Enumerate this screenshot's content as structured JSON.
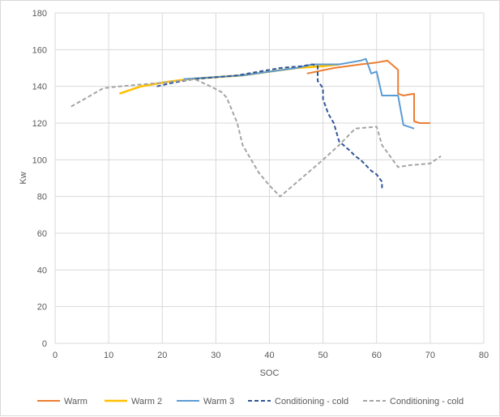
{
  "chart_data": {
    "type": "line",
    "title": "",
    "xlabel": "SOC",
    "ylabel": "Kw",
    "xlim": [
      0,
      80
    ],
    "ylim": [
      0,
      180
    ],
    "x_ticks": [
      0,
      10,
      20,
      30,
      40,
      50,
      60,
      70,
      80
    ],
    "y_ticks": [
      0,
      20,
      40,
      60,
      80,
      100,
      120,
      140,
      160,
      180
    ],
    "grid": true,
    "legend_position": "bottom",
    "series": [
      {
        "name": "Warm",
        "color": "#ed7d31",
        "dash": "solid",
        "points": [
          [
            47,
            147
          ],
          [
            52,
            150
          ],
          [
            57,
            152
          ],
          [
            60,
            153
          ],
          [
            62,
            154
          ],
          [
            64,
            149
          ],
          [
            64,
            136
          ],
          [
            65,
            135
          ],
          [
            67,
            136
          ],
          [
            67,
            121
          ],
          [
            68,
            120
          ],
          [
            70,
            120
          ]
        ]
      },
      {
        "name": "Warm 2",
        "color": "#ffc000",
        "dash": "solid",
        "points": [
          [
            12,
            136
          ],
          [
            16,
            140
          ],
          [
            20,
            142
          ],
          [
            25,
            144
          ],
          [
            30,
            145
          ],
          [
            35,
            146
          ],
          [
            40,
            148
          ],
          [
            45,
            150
          ],
          [
            50,
            151
          ],
          [
            53,
            152
          ]
        ]
      },
      {
        "name": "Warm 3",
        "color": "#5b9bd5",
        "dash": "solid",
        "points": [
          [
            24,
            144
          ],
          [
            30,
            145
          ],
          [
            35,
            146
          ],
          [
            40,
            148
          ],
          [
            45,
            150
          ],
          [
            48,
            152
          ],
          [
            50,
            152
          ],
          [
            53,
            152
          ],
          [
            55,
            153
          ],
          [
            57,
            154
          ],
          [
            58,
            155
          ],
          [
            59,
            147
          ],
          [
            60,
            148
          ],
          [
            61,
            135
          ],
          [
            64,
            135
          ],
          [
            65,
            119
          ],
          [
            67,
            117
          ]
        ]
      },
      {
        "name": "Conditioning - cold",
        "color": "#2f5597",
        "dash": "dashed",
        "points": [
          [
            19,
            140
          ],
          [
            22,
            142
          ],
          [
            26,
            144
          ],
          [
            30,
            145
          ],
          [
            34,
            146
          ],
          [
            38,
            148
          ],
          [
            42,
            150
          ],
          [
            46,
            151
          ],
          [
            48,
            152
          ],
          [
            49,
            151
          ],
          [
            49,
            143
          ],
          [
            50,
            139
          ],
          [
            50,
            133
          ],
          [
            51,
            125
          ],
          [
            52,
            120
          ],
          [
            53,
            110
          ],
          [
            55,
            105
          ],
          [
            56,
            102
          ],
          [
            57,
            100
          ],
          [
            58,
            97
          ],
          [
            59,
            94
          ],
          [
            60,
            92
          ],
          [
            61,
            88
          ],
          [
            61,
            84
          ]
        ]
      },
      {
        "name": "Conditioning - cold",
        "color": "#a5a5a5",
        "dash": "dashed",
        "points": [
          [
            3,
            129
          ],
          [
            6,
            134
          ],
          [
            9,
            139
          ],
          [
            12,
            140
          ],
          [
            16,
            141
          ],
          [
            20,
            142
          ],
          [
            26,
            144
          ],
          [
            29,
            140
          ],
          [
            31,
            137
          ],
          [
            32,
            134
          ],
          [
            33,
            127
          ],
          [
            34,
            120
          ],
          [
            35,
            108
          ],
          [
            38,
            93
          ],
          [
            40,
            86
          ],
          [
            42,
            80
          ],
          [
            46,
            90
          ],
          [
            50,
            100
          ],
          [
            53,
            108
          ],
          [
            56,
            117
          ],
          [
            60,
            118
          ],
          [
            61,
            108
          ],
          [
            64,
            96
          ],
          [
            66,
            97
          ],
          [
            70,
            98
          ],
          [
            72,
            102
          ]
        ]
      }
    ]
  }
}
